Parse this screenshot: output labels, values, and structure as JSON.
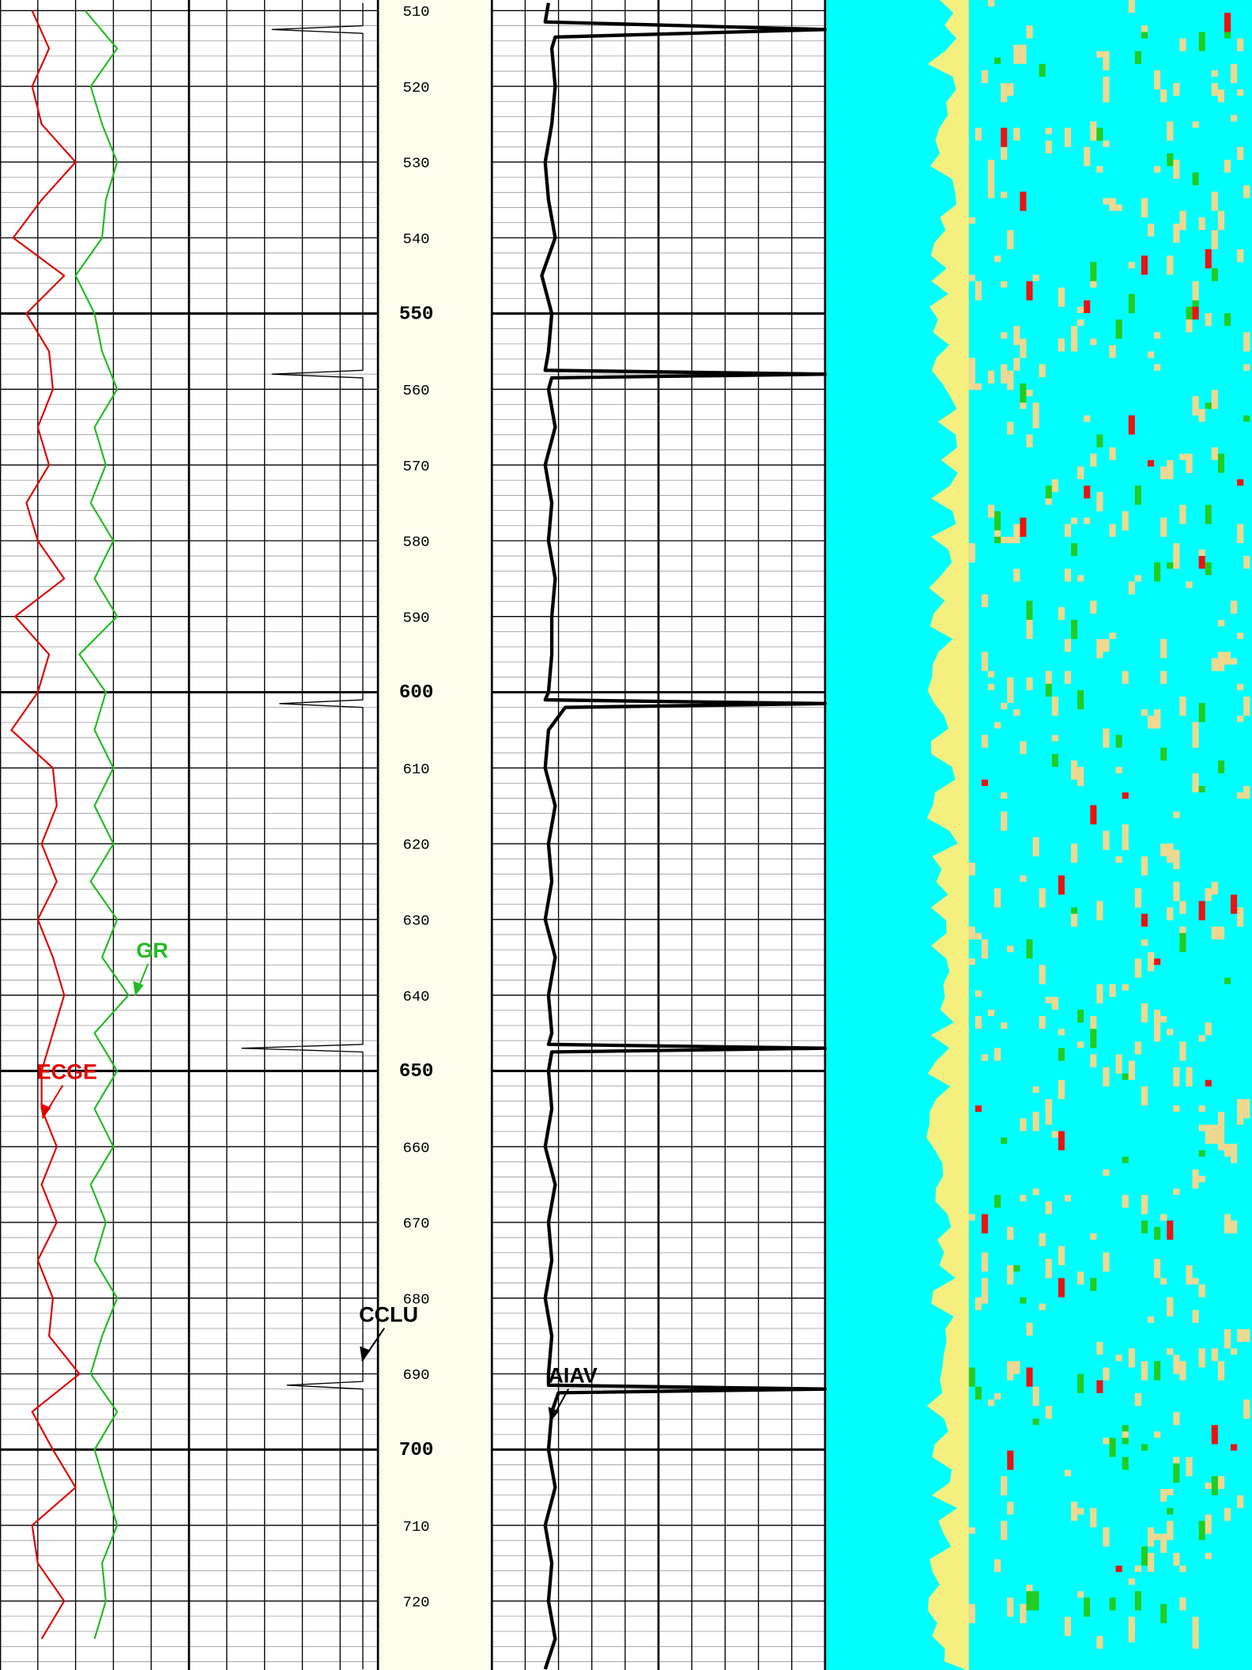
{
  "chart_data": {
    "type": "line",
    "ylim": [
      508.6,
      729.1
    ],
    "yticks": [
      510,
      520,
      530,
      540,
      550,
      560,
      570,
      580,
      590,
      600,
      610,
      620,
      630,
      640,
      650,
      660,
      670,
      680,
      690,
      700,
      710,
      720
    ],
    "minor_divisions": 5,
    "xlim": [
      0,
      10
    ],
    "xticks": [
      0,
      1,
      2,
      3,
      4,
      5,
      6,
      7,
      8,
      9,
      10
    ],
    "grid": true,
    "series": [
      {
        "name": "ECGE",
        "color": "#e00000",
        "track": "left",
        "depth": [
          510,
          515,
          520,
          525,
          530,
          535,
          540,
          545,
          550,
          555,
          560,
          565,
          570,
          575,
          580,
          585,
          590,
          595,
          600,
          605,
          610,
          615,
          620,
          625,
          630,
          635,
          640,
          645,
          650,
          655,
          660,
          665,
          670,
          675,
          680,
          685,
          690,
          695,
          700,
          705,
          710,
          715,
          720,
          725
        ],
        "values": [
          0.85,
          1.3,
          0.85,
          1.1,
          2.0,
          1.1,
          0.35,
          1.7,
          0.7,
          1.3,
          1.4,
          1.0,
          1.3,
          0.7,
          1.0,
          1.7,
          0.4,
          1.3,
          1.0,
          0.3,
          1.4,
          1.5,
          1.1,
          1.5,
          1.0,
          1.4,
          1.7,
          1.4,
          1.1,
          1.1,
          1.5,
          1.1,
          1.5,
          1.0,
          1.4,
          1.3,
          2.1,
          0.85,
          1.4,
          2.0,
          0.85,
          1.0,
          1.7,
          1.1
        ]
      },
      {
        "name": "GR",
        "color": "#22bb22",
        "track": "left",
        "depth": [
          510,
          515,
          520,
          525,
          530,
          535,
          540,
          545,
          550,
          555,
          560,
          565,
          570,
          575,
          580,
          585,
          590,
          595,
          600,
          605,
          610,
          615,
          620,
          625,
          630,
          635,
          640,
          645,
          650,
          655,
          660,
          665,
          670,
          675,
          680,
          685,
          690,
          695,
          700,
          705,
          710,
          715,
          720,
          725
        ],
        "values": [
          2.25,
          3.1,
          2.4,
          2.7,
          3.1,
          2.8,
          2.7,
          2.0,
          2.5,
          2.7,
          3.1,
          2.5,
          2.8,
          2.4,
          3.0,
          2.5,
          3.1,
          2.1,
          2.8,
          2.5,
          3.0,
          2.5,
          3.0,
          2.4,
          3.1,
          2.7,
          3.4,
          2.5,
          3.1,
          2.5,
          3.0,
          2.4,
          2.8,
          2.5,
          3.1,
          2.7,
          2.4,
          3.1,
          2.5,
          2.8,
          3.1,
          2.7,
          2.8,
          2.5
        ]
      },
      {
        "name": "CCLU",
        "color": "#000000",
        "track": "left",
        "depth": [
          509,
          512,
          512.5,
          513,
          557.5,
          558,
          558.5,
          601,
          601.5,
          602,
          646.5,
          647,
          647.5,
          691,
          691.5,
          692,
          729
        ],
        "values": [
          9.6,
          9.6,
          7.2,
          9.6,
          9.6,
          7.2,
          9.6,
          9.6,
          7.4,
          9.6,
          9.6,
          6.4,
          9.6,
          9.6,
          7.6,
          9.6,
          9.6
        ]
      },
      {
        "name": "AIAV",
        "color": "#000000",
        "track": "right",
        "depth": [
          509,
          511.5,
          512.5,
          513.5,
          515,
          520,
          525,
          530,
          535,
          540,
          545,
          550,
          555,
          557.5,
          558,
          558.5,
          560,
          565,
          570,
          575,
          580,
          585,
          590,
          595,
          600,
          601,
          601.5,
          602,
          605,
          610,
          615,
          620,
          625,
          630,
          635,
          640,
          645,
          646.5,
          647,
          647.5,
          650,
          655,
          660,
          665,
          670,
          675,
          680,
          685,
          690,
          691.5,
          692,
          692.5,
          695,
          700,
          705,
          710,
          715,
          720,
          725,
          729
        ],
        "values": [
          1.7,
          1.6,
          10,
          1.9,
          1.8,
          1.9,
          1.8,
          1.6,
          1.7,
          1.9,
          1.5,
          1.8,
          1.7,
          1.6,
          10,
          1.8,
          1.7,
          1.9,
          1.6,
          1.8,
          1.7,
          1.9,
          1.8,
          1.8,
          1.7,
          1.6,
          10,
          2.2,
          1.7,
          1.6,
          1.9,
          1.7,
          1.8,
          1.6,
          1.9,
          1.7,
          1.8,
          1.7,
          10,
          1.8,
          1.7,
          1.8,
          1.6,
          1.9,
          1.7,
          1.8,
          1.6,
          1.8,
          1.7,
          1.7,
          10,
          2.0,
          1.8,
          1.7,
          1.9,
          1.6,
          1.8,
          1.7,
          1.9,
          1.6
        ]
      }
    ]
  }
}
